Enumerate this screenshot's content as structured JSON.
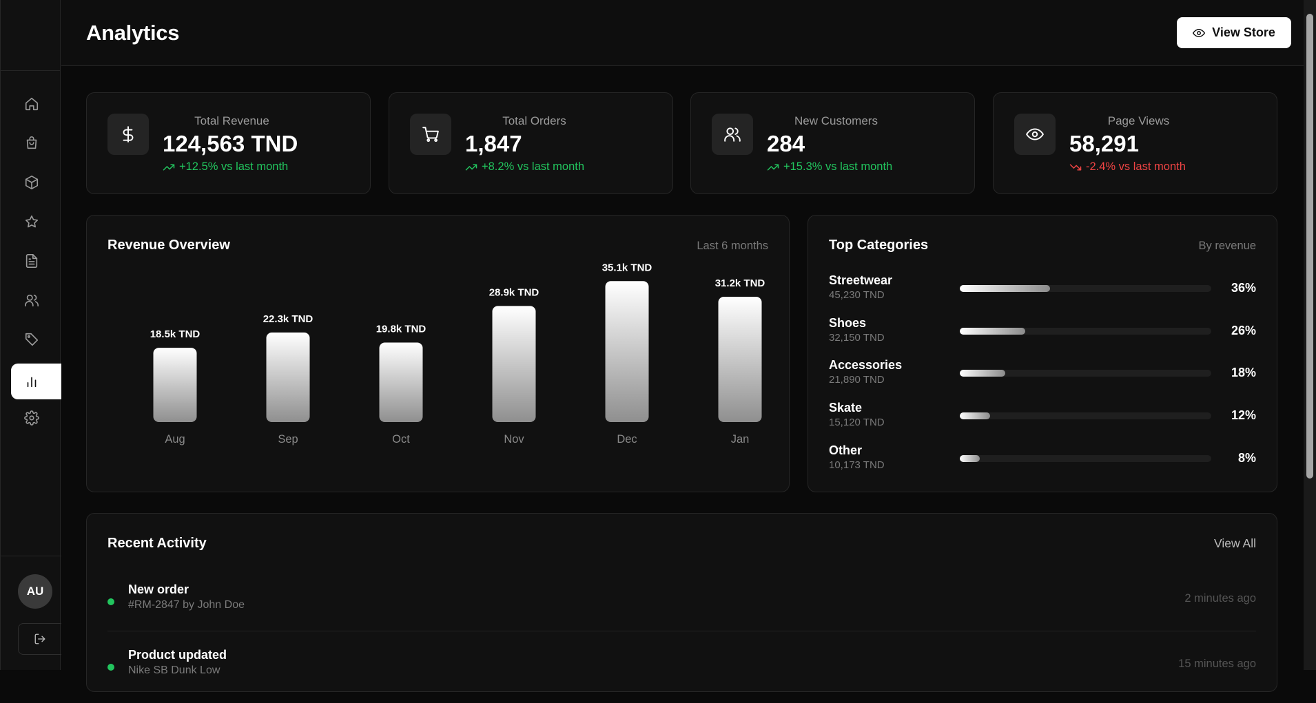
{
  "header": {
    "title": "Analytics",
    "view_store_label": "View Store"
  },
  "sidebar": {
    "items": [
      {
        "name": "home-icon",
        "active": false
      },
      {
        "name": "shopping-bag-icon",
        "active": false
      },
      {
        "name": "box-icon",
        "active": false
      },
      {
        "name": "star-icon",
        "active": false
      },
      {
        "name": "file-text-icon",
        "active": false
      },
      {
        "name": "users-icon",
        "active": false
      },
      {
        "name": "tag-icon",
        "active": false
      },
      {
        "name": "bar-chart-icon",
        "active": true
      },
      {
        "name": "settings-icon",
        "active": false
      }
    ],
    "avatar_initials": "AU",
    "logout_icon": "log-out-icon"
  },
  "stats": [
    {
      "label": "Total Revenue",
      "value": "124,563 TND",
      "change": "+12.5% vs last month",
      "trend": "up",
      "icon": "dollar-icon"
    },
    {
      "label": "Total Orders",
      "value": "1,847",
      "change": "+8.2% vs last month",
      "trend": "up",
      "icon": "cart-icon"
    },
    {
      "label": "New Customers",
      "value": "284",
      "change": "+15.3% vs last month",
      "trend": "up",
      "icon": "users-icon"
    },
    {
      "label": "Page Views",
      "value": "58,291",
      "change": "-2.4% vs last month",
      "trend": "down",
      "icon": "eye-icon"
    }
  ],
  "revenue": {
    "title": "Revenue Overview",
    "subtitle": "Last 6 months"
  },
  "chart_data": {
    "type": "bar",
    "categories": [
      "Aug",
      "Sep",
      "Oct",
      "Nov",
      "Dec",
      "Jan"
    ],
    "values": [
      18.5,
      22.3,
      19.8,
      28.9,
      35.1,
      31.2
    ],
    "data_labels": [
      "18.5k TND",
      "22.3k TND",
      "19.8k TND",
      "28.9k TND",
      "35.1k TND",
      "31.2k TND"
    ],
    "title": "Revenue Overview",
    "unit": "k TND",
    "grid": false
  },
  "categories": {
    "title": "Top Categories",
    "subtitle": "By revenue",
    "items": [
      {
        "name": "Streetwear",
        "amount": "45,230 TND",
        "pct_label": "36%",
        "pct": 36
      },
      {
        "name": "Shoes",
        "amount": "32,150 TND",
        "pct_label": "26%",
        "pct": 26
      },
      {
        "name": "Accessories",
        "amount": "21,890 TND",
        "pct_label": "18%",
        "pct": 18
      },
      {
        "name": "Skate",
        "amount": "15,120 TND",
        "pct_label": "12%",
        "pct": 12
      },
      {
        "name": "Other",
        "amount": "10,173 TND",
        "pct_label": "8%",
        "pct": 8
      }
    ]
  },
  "activity": {
    "title": "Recent Activity",
    "view_all": "View All",
    "items": [
      {
        "title": "New order",
        "desc": "#RM-2847 by John Doe",
        "time": "2 minutes ago"
      },
      {
        "title": "Product updated",
        "desc": "Nike SB Dunk Low",
        "time": "15 minutes ago"
      }
    ]
  },
  "colors": {
    "accent_up": "#22c55e",
    "accent_down": "#ef4444",
    "background": "#0a0a0a",
    "card": "#111111"
  }
}
